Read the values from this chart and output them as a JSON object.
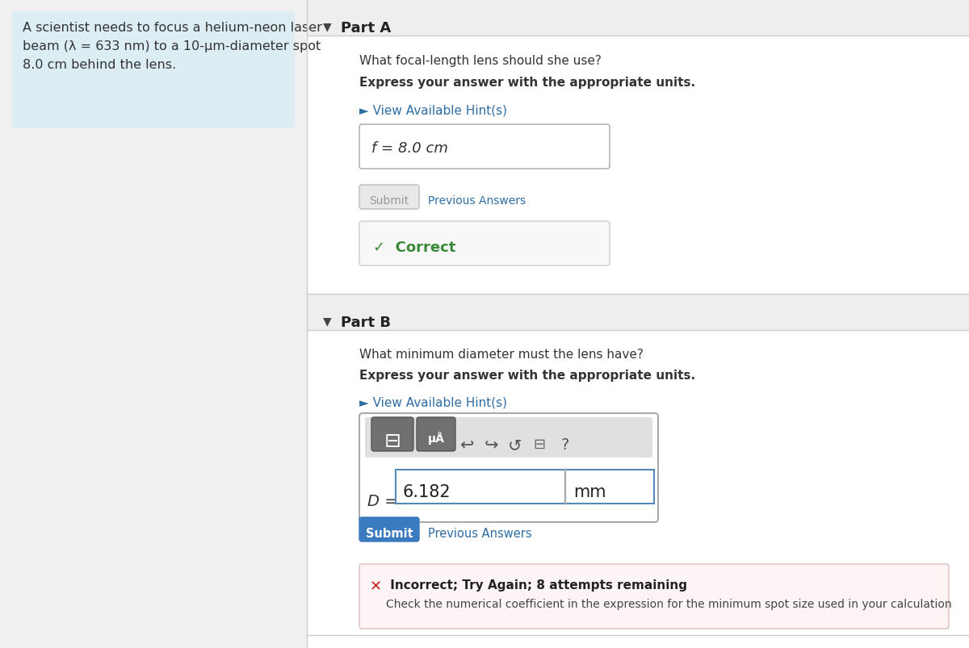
{
  "bg_color": "#f0f0f0",
  "white": "#ffffff",
  "left_panel_bg": "#dceef4",
  "left_text_line1": "A scientist needs to focus a helium-neon laser",
  "left_text_line2": "beam (λ = 633 nm) to a 10-μm-diameter spot",
  "left_text_line3": "8.0 cm behind the lens.",
  "part_a_label": "Part A",
  "part_a_q": "What focal-length lens should she use?",
  "part_a_bold": "Express your answer with the appropriate units.",
  "hint_text_a": "► View Available Hint(s)",
  "answer_a": "f = 8.0 cm",
  "submit_a": "Submit",
  "prev_answers_a": "Previous Answers",
  "correct_text": "✓  Correct",
  "part_b_label": "Part B",
  "part_b_q": "What minimum diameter must the lens have?",
  "part_b_bold": "Express your answer with the appropriate units.",
  "hint_text_b": "► View Available Hint(s)",
  "answer_b_val": "6.182",
  "answer_b_unit": "mm",
  "submit_b": "Submit",
  "prev_answers_b": "Previous Answers",
  "incorrect_title": " Incorrect; Try Again; 8 attempts remaining",
  "incorrect_detail": "Check the numerical coefficient in the expression for the minimum spot size used in your calculation",
  "hint_color": "#2e6da4",
  "submit_b_bg": "#3a7abf",
  "submit_b_fg": "#ffffff",
  "submit_a_bg": "#e8e8e8",
  "submit_a_fg": "#999999",
  "header_bg": "#eeeeee",
  "toolbar_bg": "#e0e0e0",
  "btn_bg": "#707070",
  "incorrect_bg": "#fdf5f5",
  "incorrect_border": "#ddbbbb",
  "sep_color": "#cccccc",
  "correct_bg": "#f8f8f8",
  "correct_border": "#cccccc"
}
